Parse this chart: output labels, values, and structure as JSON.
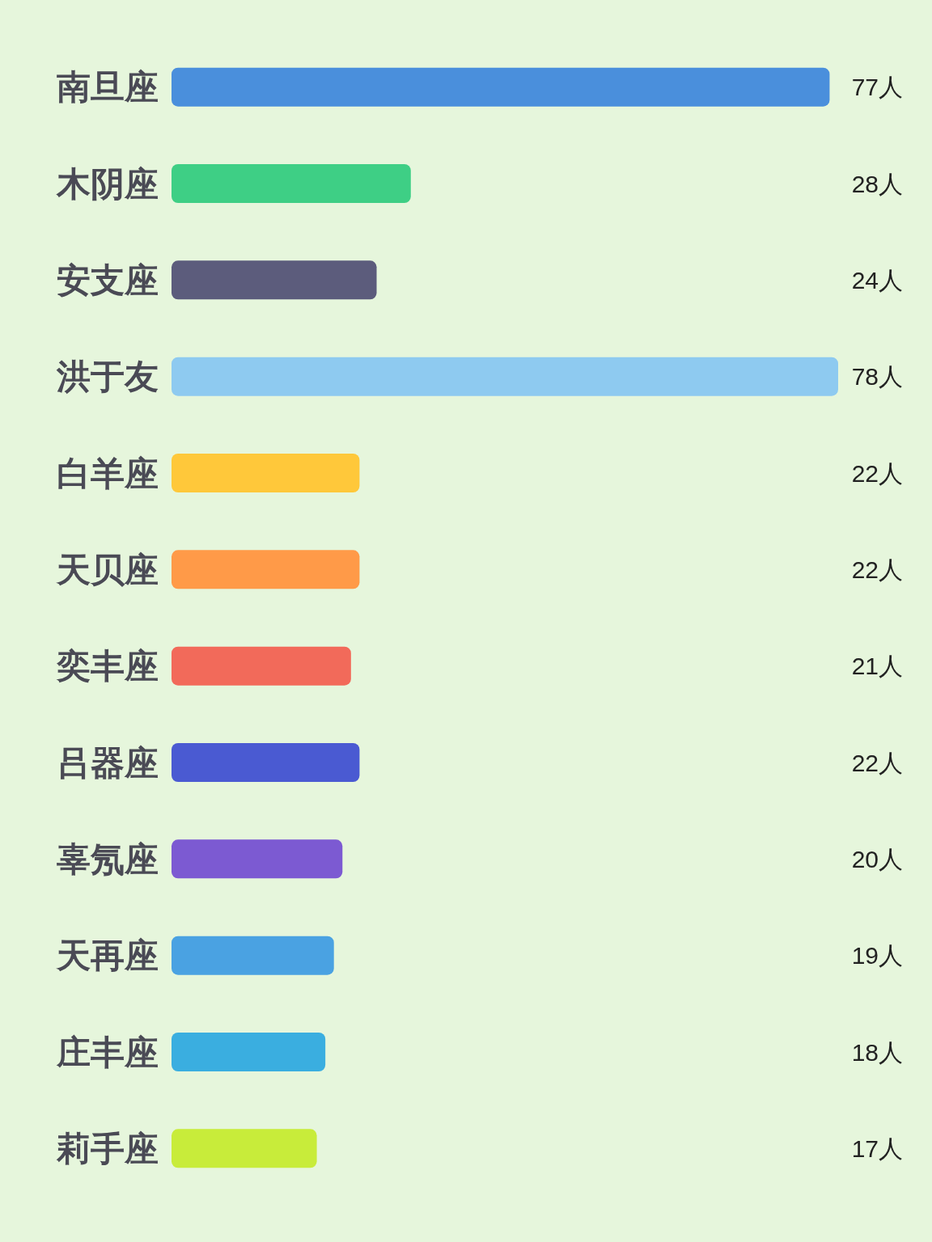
{
  "chart_data": {
    "type": "bar",
    "orientation": "horizontal",
    "categories": [
      "南旦座",
      "木阴座",
      "安支座",
      "洪于友",
      "白羊座",
      "天贝座",
      "奕丰座",
      "吕器座",
      "辜氖座",
      "天再座",
      "庄丰座",
      "莉手座"
    ],
    "values": [
      77,
      28,
      24,
      78,
      22,
      22,
      21,
      22,
      20,
      19,
      18,
      17
    ],
    "colors": [
      "#4a8fdc",
      "#3ecf85",
      "#5c5c7c",
      "#8ecaf0",
      "#ffc83a",
      "#ff9a48",
      "#f26a5a",
      "#4a5ad2",
      "#7c5ad2",
      "#4aa2e2",
      "#3aaee0",
      "#c8ec3a"
    ],
    "value_labels": [
      "77人",
      "28人",
      "24人",
      "78人",
      "22人",
      "22人",
      "21人",
      "22人",
      "20人",
      "19人",
      "18人",
      "17人"
    ]
  }
}
